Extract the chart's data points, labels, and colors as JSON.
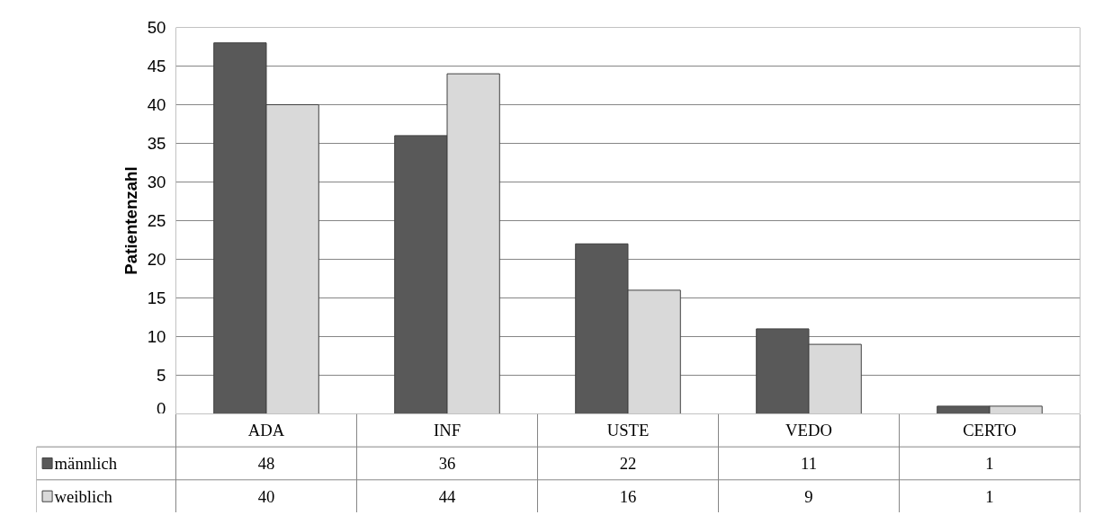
{
  "chart_data": {
    "type": "bar",
    "ylabel": "Patientenzahl",
    "categories": [
      "ADA",
      "INF",
      "USTE",
      "VEDO",
      "CERTO"
    ],
    "series": [
      {
        "name": "männlich",
        "color": "#595959",
        "values": [
          48,
          36,
          22,
          11,
          1
        ]
      },
      {
        "name": "weiblich",
        "color": "#d9d9d9",
        "values": [
          40,
          44,
          16,
          9,
          1
        ]
      }
    ],
    "ylim": [
      0,
      50
    ],
    "yticks": [
      0,
      5,
      10,
      15,
      20,
      25,
      30,
      35,
      40,
      45,
      50
    ],
    "grid": "y",
    "legend": "bottom",
    "data_labels": true
  }
}
